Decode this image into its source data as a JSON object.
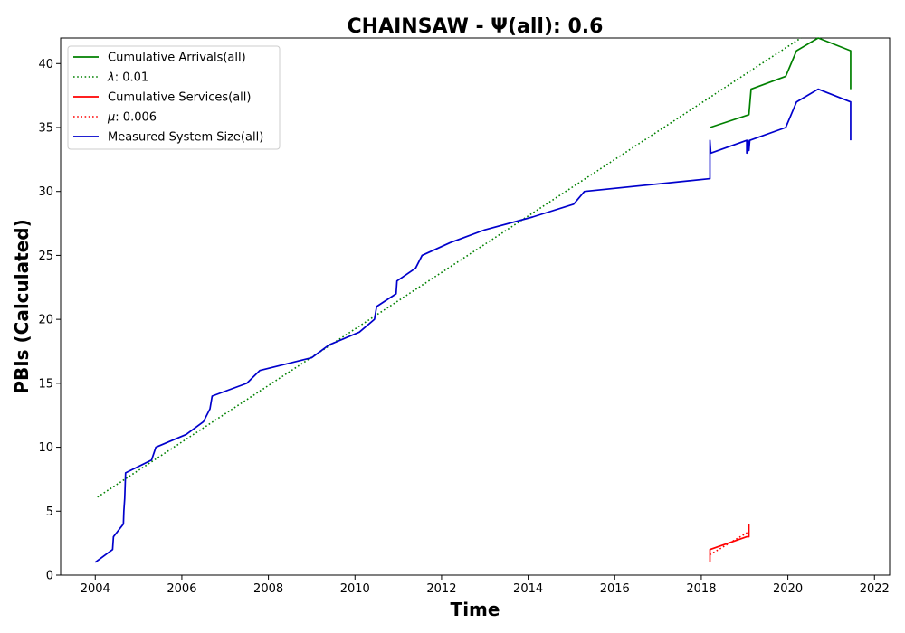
{
  "chart_data": {
    "type": "line",
    "title": "CHAINSAW -  Ψ(all): 0.6",
    "xlabel": "Time",
    "ylabel": "PBIs (Calculated)",
    "xlim": [
      2003.2,
      2022.35
    ],
    "ylim": [
      0,
      42
    ],
    "x_ticks": [
      2004,
      2006,
      2008,
      2010,
      2012,
      2014,
      2016,
      2018,
      2020,
      2022
    ],
    "y_ticks": [
      0,
      5,
      10,
      15,
      20,
      25,
      30,
      35,
      40
    ],
    "grid": false,
    "legend_position": "top-left",
    "series": [
      {
        "name": "Cumulative Arrivals(all)",
        "color": "#008000",
        "style": "solid",
        "points": [
          [
            2018.2,
            35
          ],
          [
            2019.1,
            36
          ],
          [
            2019.15,
            38
          ],
          [
            2019.95,
            39
          ],
          [
            2020.2,
            41
          ],
          [
            2020.7,
            42
          ],
          [
            2021.45,
            41
          ],
          [
            2021.45,
            38
          ]
        ]
      },
      {
        "name": "λ: 0.01",
        "legend_label": {
          "symbol": "λ",
          "rest": ": 0.01"
        },
        "color": "#008000",
        "style": "dotted",
        "points": [
          [
            2004.05,
            6.1
          ],
          [
            2020.3,
            42
          ]
        ]
      },
      {
        "name": "Cumulative Services(all)",
        "color": "#ff0000",
        "style": "solid",
        "points": [
          [
            2018.2,
            1
          ],
          [
            2018.2,
            2
          ],
          [
            2019.05,
            3
          ],
          [
            2019.1,
            3
          ],
          [
            2019.1,
            4
          ]
        ]
      },
      {
        "name": "μ: 0.006",
        "legend_label": {
          "symbol": "μ",
          "rest": ": 0.006"
        },
        "color": "#ff0000",
        "style": "dotted",
        "points": [
          [
            2018.2,
            1.6
          ],
          [
            2019.1,
            3.4
          ]
        ]
      },
      {
        "name": "Measured System Size(all)",
        "color": "#0000cc",
        "style": "solid",
        "points": [
          [
            2004.0,
            1
          ],
          [
            2004.4,
            2
          ],
          [
            2004.42,
            3
          ],
          [
            2004.65,
            4
          ],
          [
            2004.66,
            5
          ],
          [
            2004.68,
            6
          ],
          [
            2004.7,
            8
          ],
          [
            2005.3,
            9
          ],
          [
            2005.4,
            10
          ],
          [
            2006.1,
            11
          ],
          [
            2006.5,
            12
          ],
          [
            2006.65,
            13
          ],
          [
            2006.7,
            14
          ],
          [
            2007.5,
            15
          ],
          [
            2007.8,
            16
          ],
          [
            2009.0,
            17
          ],
          [
            2009.4,
            18
          ],
          [
            2010.1,
            19
          ],
          [
            2010.45,
            20
          ],
          [
            2010.5,
            21
          ],
          [
            2010.95,
            22
          ],
          [
            2010.97,
            23
          ],
          [
            2011.4,
            24
          ],
          [
            2011.55,
            25
          ],
          [
            2012.2,
            26
          ],
          [
            2013.0,
            27
          ],
          [
            2014.1,
            28
          ],
          [
            2015.05,
            29
          ],
          [
            2015.3,
            30
          ],
          [
            2018.2,
            31
          ],
          [
            2018.2,
            34
          ],
          [
            2018.22,
            33
          ],
          [
            2019.05,
            34
          ],
          [
            2019.05,
            33
          ],
          [
            2019.08,
            34
          ],
          [
            2019.1,
            33.2
          ],
          [
            2019.12,
            34
          ],
          [
            2019.95,
            35
          ],
          [
            2020.2,
            37
          ],
          [
            2020.7,
            38
          ],
          [
            2021.45,
            37
          ],
          [
            2021.45,
            34
          ]
        ]
      }
    ]
  }
}
